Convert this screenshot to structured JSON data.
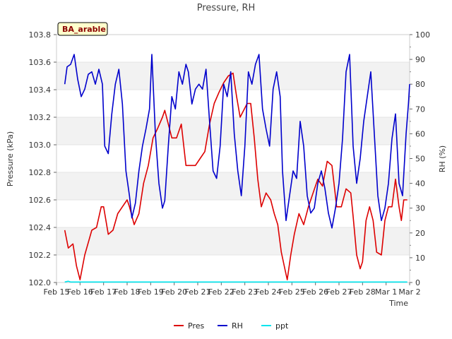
{
  "chart_data": {
    "type": "line",
    "title": "Pressure, RH",
    "badge": "BA_arable",
    "xlabel": "Time",
    "ylabel_left": "Pressure (kPa)",
    "ylabel_right": "RH (%)",
    "x_ticks": [
      "Feb 15",
      "Feb 16",
      "Feb 17",
      "Feb 18",
      "Feb 19",
      "Feb 20",
      "Feb 21",
      "Feb 22",
      "Feb 23",
      "Feb 24",
      "Feb 25",
      "Feb 26",
      "Feb 27",
      "Feb 28",
      "Mar 1",
      "Mar 2"
    ],
    "xlim_days": [
      0,
      15
    ],
    "ylim_left": [
      102.0,
      103.8
    ],
    "y_ticks_left": [
      "102.0",
      "102.2",
      "102.4",
      "102.6",
      "102.8",
      "103.0",
      "103.2",
      "103.4",
      "103.6",
      "103.8"
    ],
    "ylim_right": [
      0,
      100
    ],
    "y_ticks_right": [
      "0",
      "10",
      "20",
      "30",
      "40",
      "50",
      "60",
      "70",
      "80",
      "90",
      "100"
    ],
    "grid": "horizontal bands",
    "legend_position": "bottom",
    "series": [
      {
        "name": "Pres",
        "axis": "left",
        "color": "#dd0000",
        "points": [
          [
            0.35,
            102.38
          ],
          [
            0.5,
            102.25
          ],
          [
            0.7,
            102.28
          ],
          [
            0.85,
            102.12
          ],
          [
            1.0,
            102.02
          ],
          [
            1.2,
            102.2
          ],
          [
            1.5,
            102.38
          ],
          [
            1.7,
            102.4
          ],
          [
            1.9,
            102.55
          ],
          [
            2.0,
            102.55
          ],
          [
            2.2,
            102.35
          ],
          [
            2.4,
            102.38
          ],
          [
            2.6,
            102.5
          ],
          [
            2.8,
            102.55
          ],
          [
            3.0,
            102.6
          ],
          [
            3.1,
            102.55
          ],
          [
            3.3,
            102.42
          ],
          [
            3.5,
            102.5
          ],
          [
            3.7,
            102.72
          ],
          [
            3.9,
            102.85
          ],
          [
            4.1,
            103.05
          ],
          [
            4.3,
            103.12
          ],
          [
            4.5,
            103.2
          ],
          [
            4.6,
            103.25
          ],
          [
            4.75,
            103.15
          ],
          [
            4.9,
            103.05
          ],
          [
            5.1,
            103.05
          ],
          [
            5.3,
            103.15
          ],
          [
            5.5,
            102.85
          ],
          [
            5.7,
            102.85
          ],
          [
            5.9,
            102.85
          ],
          [
            6.1,
            102.9
          ],
          [
            6.3,
            102.95
          ],
          [
            6.5,
            103.15
          ],
          [
            6.7,
            103.3
          ],
          [
            6.9,
            103.38
          ],
          [
            7.1,
            103.45
          ],
          [
            7.3,
            103.5
          ],
          [
            7.5,
            103.52
          ],
          [
            7.65,
            103.35
          ],
          [
            7.8,
            103.2
          ],
          [
            7.95,
            103.25
          ],
          [
            8.1,
            103.3
          ],
          [
            8.25,
            103.3
          ],
          [
            8.4,
            103.05
          ],
          [
            8.55,
            102.75
          ],
          [
            8.7,
            102.55
          ],
          [
            8.9,
            102.65
          ],
          [
            9.1,
            102.6
          ],
          [
            9.25,
            102.5
          ],
          [
            9.4,
            102.42
          ],
          [
            9.55,
            102.22
          ],
          [
            9.7,
            102.1
          ],
          [
            9.8,
            102.02
          ],
          [
            9.95,
            102.2
          ],
          [
            10.1,
            102.35
          ],
          [
            10.3,
            102.5
          ],
          [
            10.5,
            102.42
          ],
          [
            10.7,
            102.55
          ],
          [
            10.9,
            102.65
          ],
          [
            11.1,
            102.75
          ],
          [
            11.3,
            102.7
          ],
          [
            11.5,
            102.88
          ],
          [
            11.7,
            102.85
          ],
          [
            11.9,
            102.55
          ],
          [
            12.1,
            102.55
          ],
          [
            12.3,
            102.68
          ],
          [
            12.5,
            102.65
          ],
          [
            12.6,
            102.48
          ],
          [
            12.75,
            102.2
          ],
          [
            12.9,
            102.1
          ],
          [
            13.0,
            102.15
          ],
          [
            13.15,
            102.45
          ],
          [
            13.3,
            102.55
          ],
          [
            13.45,
            102.45
          ],
          [
            13.6,
            102.22
          ],
          [
            13.8,
            102.2
          ],
          [
            13.95,
            102.45
          ],
          [
            14.1,
            102.55
          ],
          [
            14.25,
            102.55
          ],
          [
            14.4,
            102.75
          ],
          [
            14.55,
            102.55
          ],
          [
            14.65,
            102.45
          ],
          [
            14.75,
            102.6
          ],
          [
            14.9,
            102.6
          ]
        ]
      },
      {
        "name": "RH",
        "axis": "right",
        "color": "#0000cc",
        "points": [
          [
            0.35,
            80
          ],
          [
            0.45,
            87
          ],
          [
            0.6,
            88
          ],
          [
            0.75,
            92
          ],
          [
            0.9,
            82
          ],
          [
            1.05,
            75
          ],
          [
            1.2,
            78
          ],
          [
            1.35,
            84
          ],
          [
            1.5,
            85
          ],
          [
            1.65,
            80
          ],
          [
            1.8,
            86
          ],
          [
            1.95,
            80
          ],
          [
            2.05,
            55
          ],
          [
            2.2,
            52
          ],
          [
            2.35,
            68
          ],
          [
            2.5,
            80
          ],
          [
            2.65,
            86
          ],
          [
            2.8,
            72
          ],
          [
            2.95,
            45
          ],
          [
            3.1,
            35
          ],
          [
            3.2,
            26
          ],
          [
            3.35,
            32
          ],
          [
            3.5,
            45
          ],
          [
            3.65,
            55
          ],
          [
            3.8,
            62
          ],
          [
            3.95,
            70
          ],
          [
            4.05,
            92
          ],
          [
            4.2,
            60
          ],
          [
            4.35,
            40
          ],
          [
            4.5,
            30
          ],
          [
            4.6,
            33
          ],
          [
            4.75,
            55
          ],
          [
            4.9,
            75
          ],
          [
            5.05,
            70
          ],
          [
            5.2,
            85
          ],
          [
            5.35,
            80
          ],
          [
            5.5,
            88
          ],
          [
            5.6,
            85
          ],
          [
            5.75,
            72
          ],
          [
            5.9,
            78
          ],
          [
            6.05,
            80
          ],
          [
            6.2,
            78
          ],
          [
            6.35,
            86
          ],
          [
            6.5,
            65
          ],
          [
            6.65,
            45
          ],
          [
            6.8,
            42
          ],
          [
            6.95,
            55
          ],
          [
            7.1,
            80
          ],
          [
            7.25,
            75
          ],
          [
            7.4,
            85
          ],
          [
            7.55,
            60
          ],
          [
            7.7,
            45
          ],
          [
            7.85,
            35
          ],
          [
            8.0,
            55
          ],
          [
            8.15,
            85
          ],
          [
            8.3,
            80
          ],
          [
            8.45,
            88
          ],
          [
            8.6,
            92
          ],
          [
            8.75,
            70
          ],
          [
            8.9,
            62
          ],
          [
            9.05,
            55
          ],
          [
            9.2,
            78
          ],
          [
            9.35,
            85
          ],
          [
            9.5,
            75
          ],
          [
            9.6,
            45
          ],
          [
            9.75,
            25
          ],
          [
            9.9,
            35
          ],
          [
            10.05,
            45
          ],
          [
            10.2,
            42
          ],
          [
            10.35,
            65
          ],
          [
            10.5,
            55
          ],
          [
            10.65,
            35
          ],
          [
            10.8,
            28
          ],
          [
            10.95,
            30
          ],
          [
            11.1,
            40
          ],
          [
            11.25,
            45
          ],
          [
            11.4,
            38
          ],
          [
            11.55,
            28
          ],
          [
            11.7,
            22
          ],
          [
            11.85,
            30
          ],
          [
            12.0,
            40
          ],
          [
            12.15,
            58
          ],
          [
            12.3,
            85
          ],
          [
            12.45,
            92
          ],
          [
            12.6,
            55
          ],
          [
            12.75,
            40
          ],
          [
            12.9,
            50
          ],
          [
            13.05,
            65
          ],
          [
            13.2,
            75
          ],
          [
            13.35,
            85
          ],
          [
            13.5,
            60
          ],
          [
            13.65,
            35
          ],
          [
            13.8,
            25
          ],
          [
            13.95,
            30
          ],
          [
            14.1,
            40
          ],
          [
            14.25,
            58
          ],
          [
            14.4,
            68
          ],
          [
            14.55,
            40
          ],
          [
            14.7,
            35
          ],
          [
            14.85,
            60
          ],
          [
            14.95,
            72
          ],
          [
            15.0,
            80
          ]
        ]
      },
      {
        "name": "ppt",
        "axis": "right",
        "color": "#00e5ee",
        "points": [
          [
            0.35,
            0.2
          ],
          [
            0.5,
            0.5
          ],
          [
            0.6,
            0.2
          ],
          [
            1.0,
            0.2
          ],
          [
            3.0,
            0.2
          ],
          [
            6.0,
            0.2
          ],
          [
            9.0,
            0.2
          ],
          [
            12.0,
            0.2
          ],
          [
            14.9,
            0.2
          ]
        ]
      }
    ]
  }
}
